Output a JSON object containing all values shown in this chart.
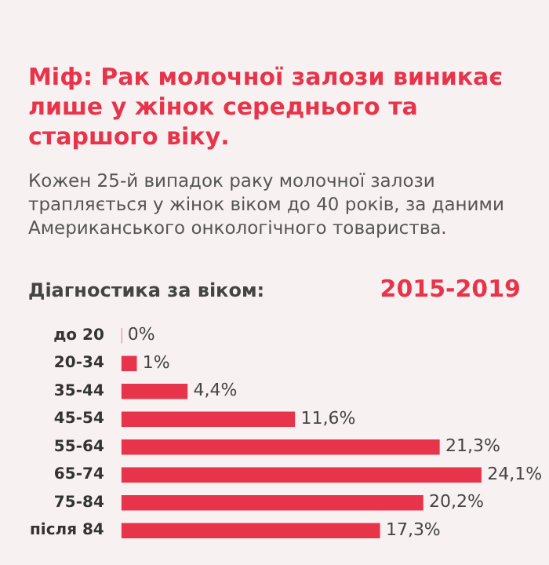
{
  "chart_data": {
    "type": "bar",
    "orientation": "horizontal",
    "title": "Міф: Рак молочної залози виникає лише у жінок середнього та старшого віку.",
    "subtitle": "Кожен 25-й випадок раку молочної залози трапляється у жінок віком до 40 років, за даними Американського онкологічного товариства.",
    "annotations": [
      "Діагностика за віком:",
      "2015-2019"
    ],
    "categories": [
      "до 20",
      "20-34",
      "35-44",
      "45-54",
      "55-64",
      "65-74",
      "75-84",
      "після 84"
    ],
    "values": [
      0,
      1,
      4.4,
      11.6,
      21.3,
      24.1,
      20.2,
      17.3
    ],
    "value_labels": [
      "0%",
      "1%",
      "4,4%",
      "11,6%",
      "21,3%",
      "24,1%",
      "20,2%",
      "17,3%"
    ],
    "color": "#e8344a",
    "legend": false
  }
}
